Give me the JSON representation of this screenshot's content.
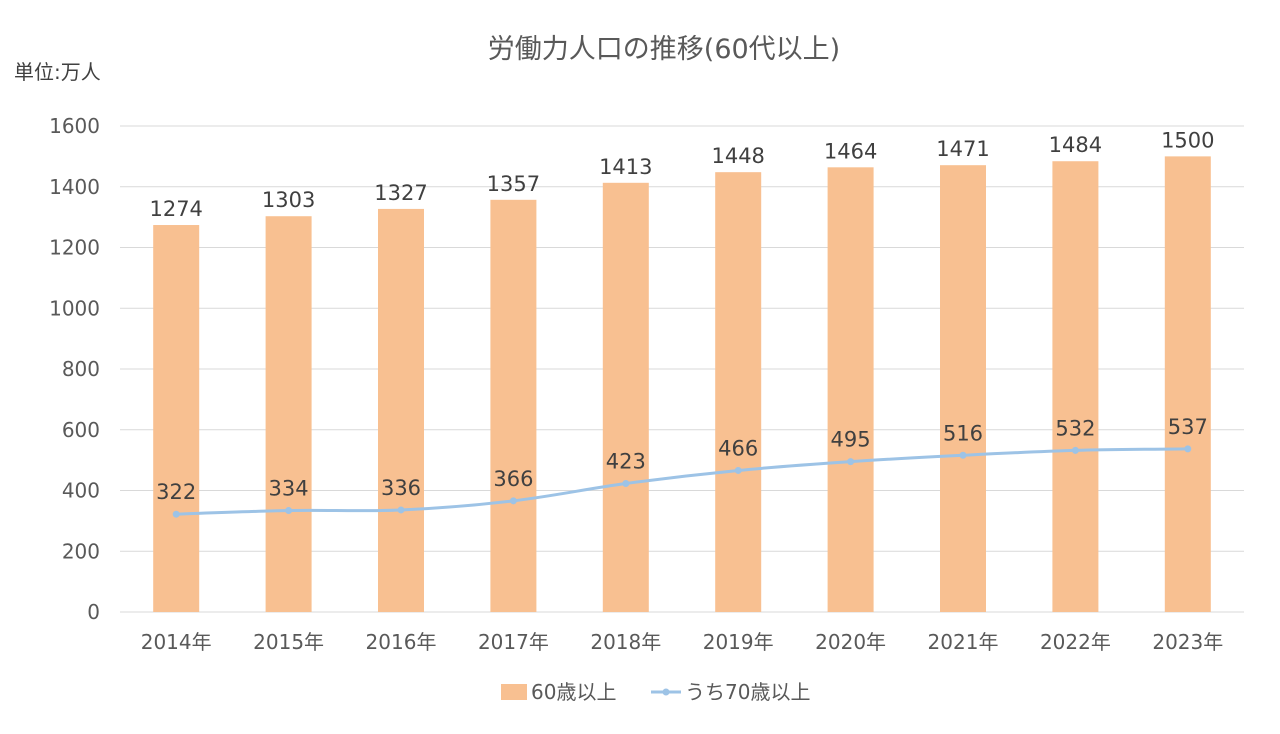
{
  "chart_data": {
    "type": "bar",
    "title": "労働力人口の推移(60代以上)",
    "unit_label": "単位:万人",
    "categories": [
      "2014年",
      "2015年",
      "2016年",
      "2017年",
      "2018年",
      "2019年",
      "2020年",
      "2021年",
      "2022年",
      "2023年"
    ],
    "ylim": [
      0,
      1600
    ],
    "yticks": [
      0,
      200,
      400,
      600,
      800,
      1000,
      1200,
      1400,
      1600
    ],
    "grid": true,
    "legend_position": "bottom",
    "series": [
      {
        "name": "60歳以上",
        "type": "bar",
        "color": "#f8c091",
        "values": [
          1274,
          1303,
          1327,
          1357,
          1413,
          1448,
          1464,
          1471,
          1484,
          1500
        ]
      },
      {
        "name": "うち70歳以上",
        "type": "line",
        "color": "#9dc3e6",
        "values": [
          322,
          334,
          336,
          366,
          423,
          466,
          495,
          516,
          532,
          537
        ]
      }
    ]
  }
}
